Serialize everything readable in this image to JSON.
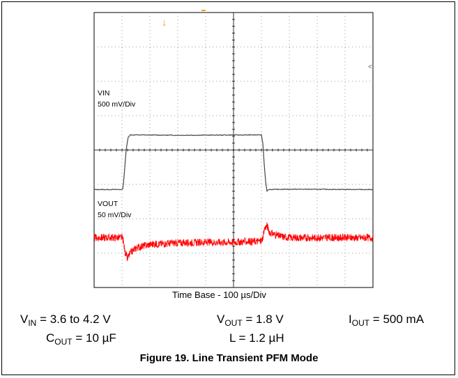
{
  "chart_data": {
    "type": "line",
    "xlabel": "Time Base - 100 µs/Div",
    "time_base_us_per_div": 100,
    "x_divisions": 10,
    "y_divisions": 8,
    "grid": true,
    "series": [
      {
        "name": "VIN",
        "scale": "500 mV/Div",
        "color": "#444444",
        "x_div": [
          0,
          1.02,
          1.05,
          1.1,
          1.15,
          1.22,
          1.3,
          3.0,
          6.0,
          6.0,
          6.05,
          6.1,
          6.15,
          6.2,
          6.25,
          7.0,
          10.0
        ],
        "y_div": [
          2.85,
          2.85,
          3.0,
          3.5,
          4.0,
          4.38,
          4.44,
          4.43,
          4.44,
          4.43,
          4.2,
          3.6,
          3.1,
          2.8,
          2.85,
          2.86,
          2.85
        ]
      },
      {
        "name": "VOUT",
        "scale": "50 mV/Div",
        "color": "#ff0000",
        "x_div": [
          0,
          1.0,
          1.05,
          1.1,
          1.2,
          1.3,
          1.5,
          2.0,
          3.0,
          5.0,
          6.0,
          6.05,
          6.1,
          6.2,
          6.3,
          6.6,
          7.0,
          10.0
        ],
        "y_div": [
          1.45,
          1.45,
          1.35,
          1.05,
          0.85,
          1.0,
          1.15,
          1.25,
          1.3,
          1.32,
          1.35,
          1.45,
          1.7,
          1.8,
          1.6,
          1.5,
          1.45,
          1.45
        ]
      }
    ]
  },
  "channels": {
    "vin": {
      "name": "VIN",
      "scale": "500 mV/Div"
    },
    "vout": {
      "name": "VOUT",
      "scale": "50 mV/Div"
    }
  },
  "conditions": {
    "vin_sym": "V",
    "vin_sub": "IN",
    "vin_val": " = 3.6 to 4.2 V",
    "vout_sym": "V",
    "vout_sub": "OUT",
    "vout_val": " = 1.8 V",
    "iout_sym": "I",
    "iout_sub": "OUT",
    "iout_val": " = 500 mA",
    "cout_sym": "C",
    "cout_sub": "OUT",
    "cout_val": " = 10 µF",
    "l_text": "L = 1.2 µH"
  },
  "caption": "Figure 19. Line Transient PFM Mode"
}
